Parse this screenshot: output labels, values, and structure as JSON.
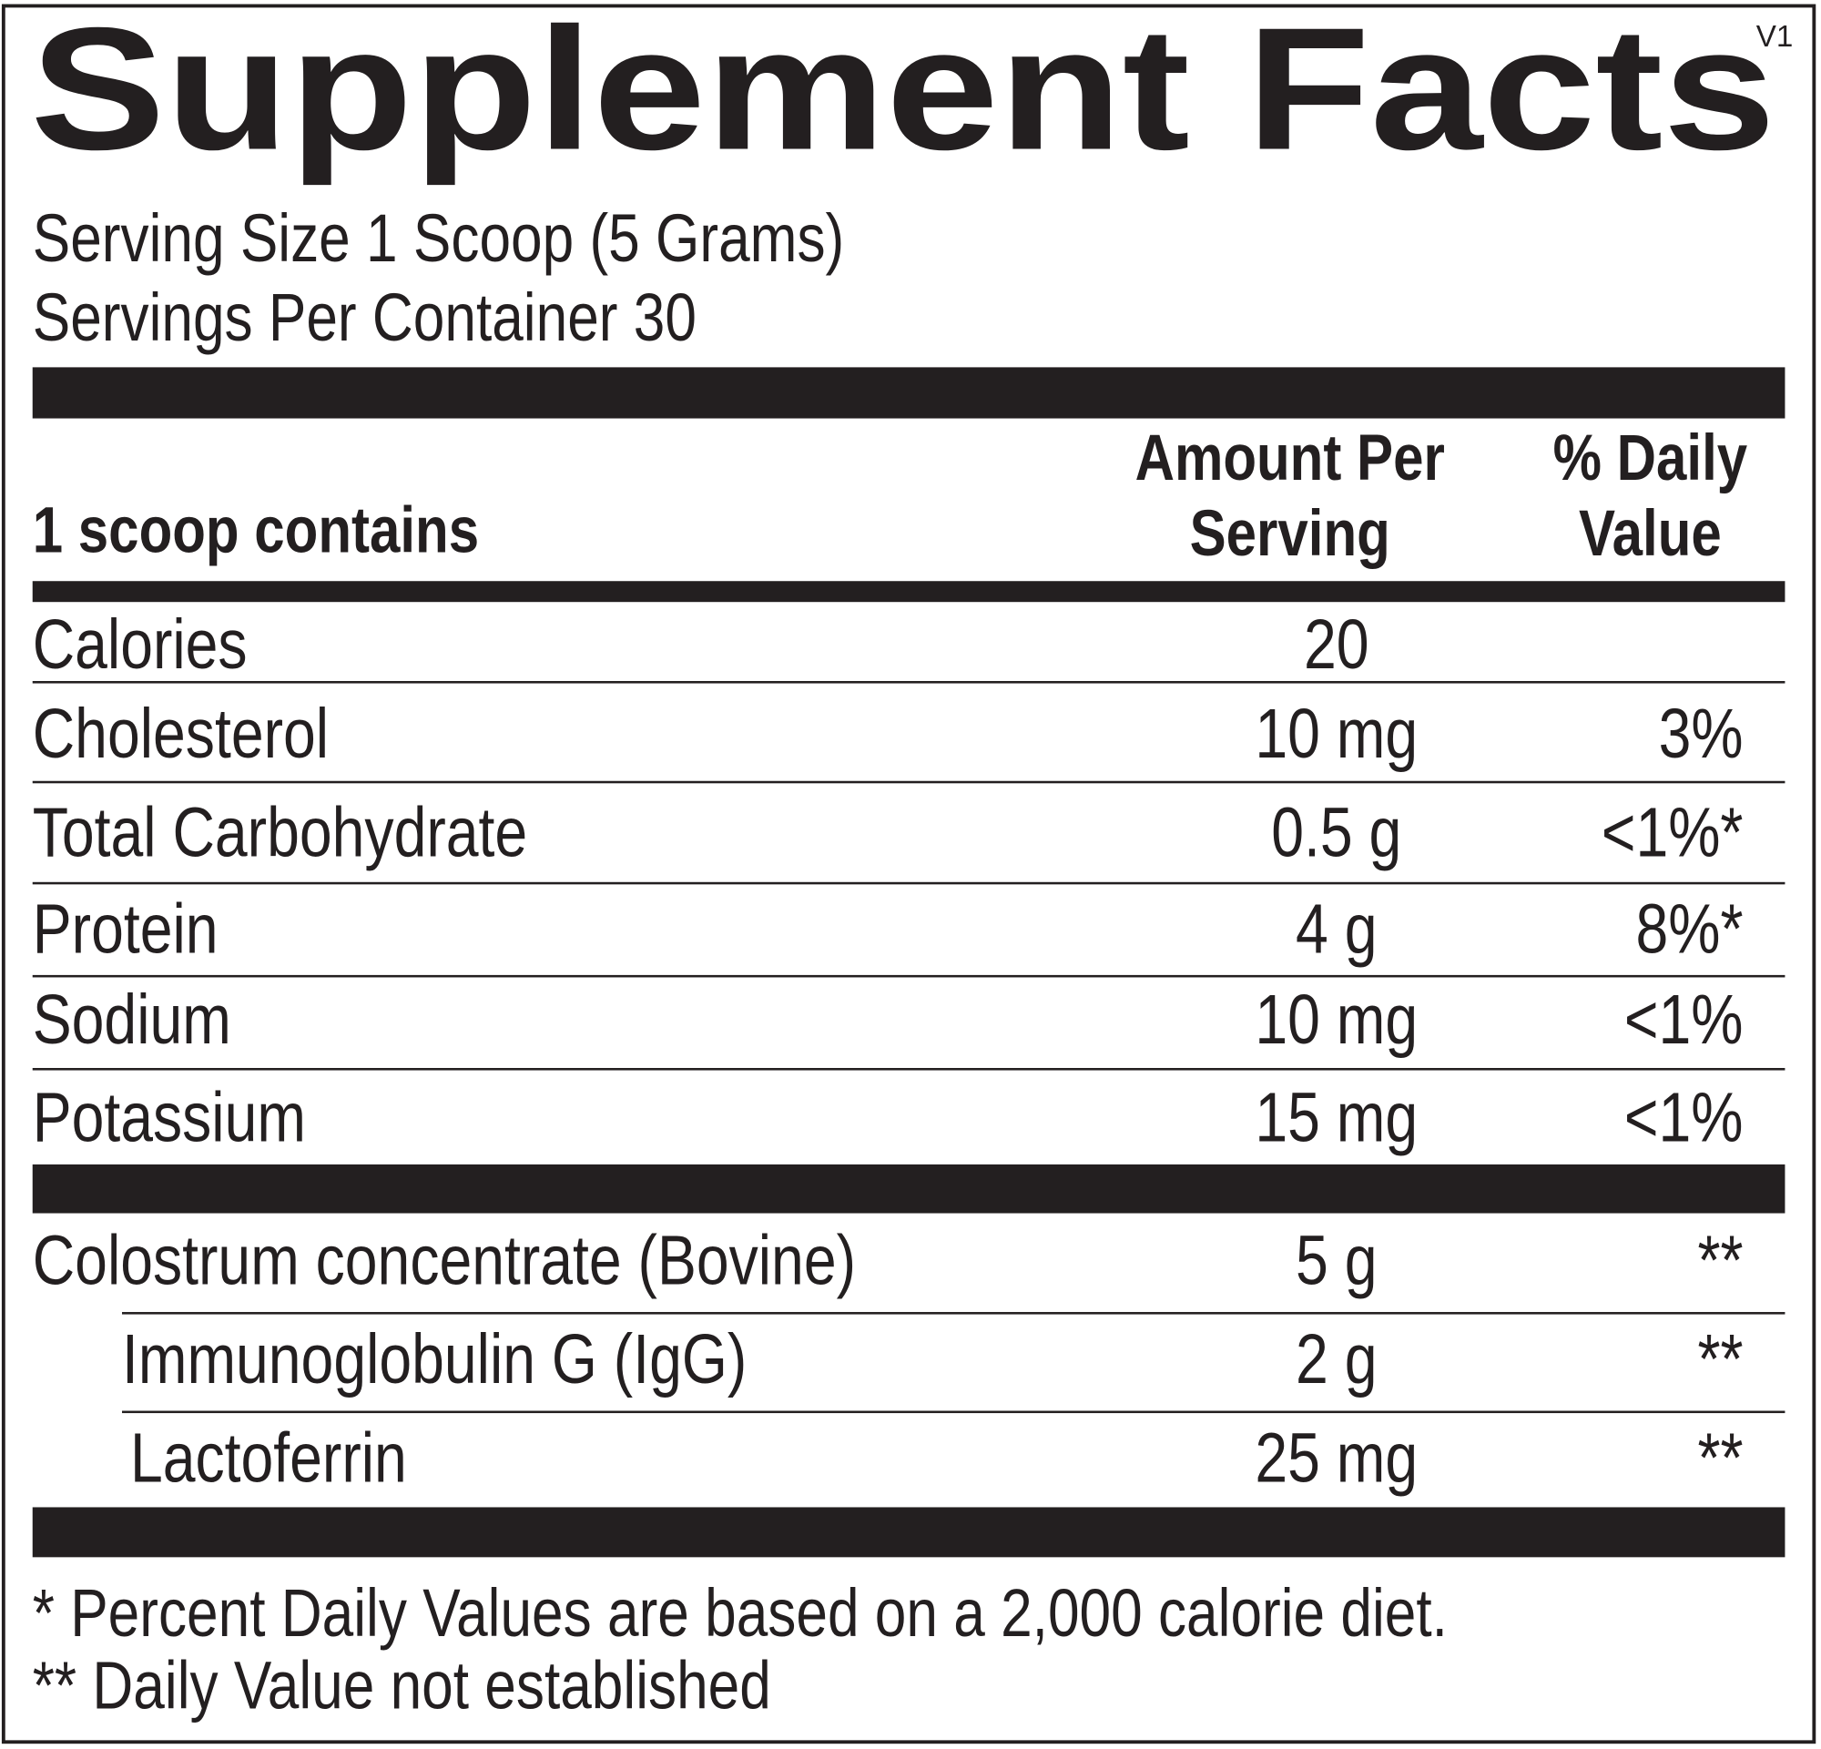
{
  "title": "Supplement Facts",
  "version": "V1",
  "serving_size": "Serving Size 1 Scoop (5 Grams)",
  "servings_per_container": "Servings Per Container 30",
  "header": {
    "contains": "1 scoop contains",
    "amount": [
      "Amount Per",
      "Serving"
    ],
    "daily_value": [
      "% Daily",
      "Value"
    ]
  },
  "nutrients": [
    {
      "name": "Calories",
      "amount": "20"
    },
    {
      "name": "Cholesterol",
      "amount": "10 mg",
      "daily_value": "3%"
    },
    {
      "name": "Total Carbohydrate",
      "amount": "0.5 g",
      "daily_value": "<1%*"
    },
    {
      "name": "Protein",
      "amount": "4 g",
      "daily_value": "8%*"
    },
    {
      "name": "Sodium",
      "amount": "10 mg",
      "daily_value": "<1%"
    },
    {
      "name": "Potassium",
      "amount": "15 mg",
      "daily_value": "<1%"
    }
  ],
  "ingredient": {
    "name": "Colostrum concentrate (Bovine)",
    "amount": "5 g",
    "daily_value": "**",
    "components": [
      {
        "name": "Immunoglobulin G (IgG)",
        "amount": "2 g",
        "daily_value": "**"
      },
      {
        "name": "Lactoferrin",
        "amount": "25 mg",
        "daily_value": "**"
      }
    ]
  },
  "footnotes": [
    "* Percent Daily Values are based on a 2,000 calorie diet.",
    "** Daily Value not established"
  ]
}
